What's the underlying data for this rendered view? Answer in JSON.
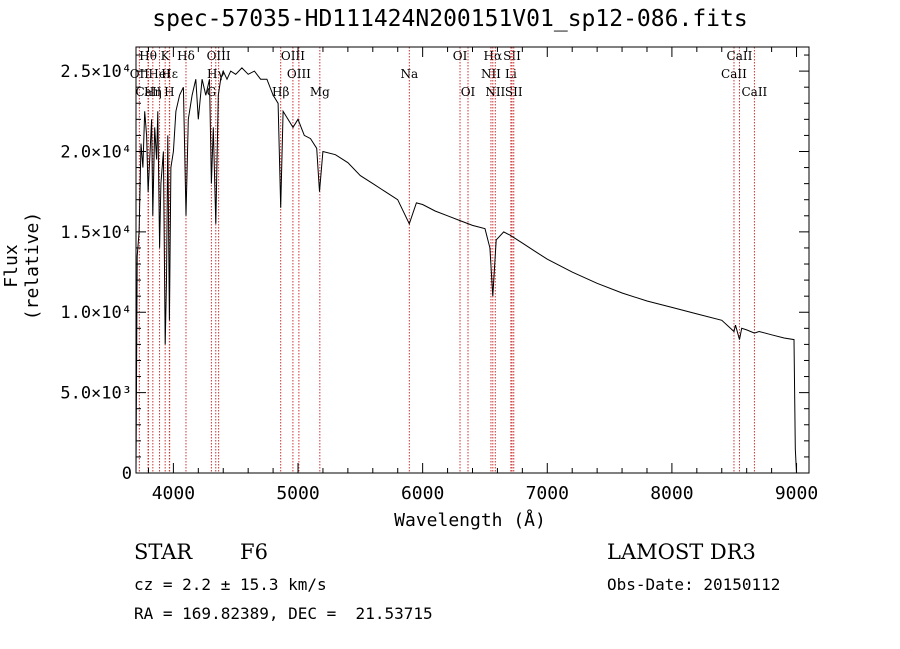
{
  "chart_data": {
    "type": "line",
    "title": "spec-57035-HD111424N200151V01_sp12-086.fits",
    "xlabel": "Wavelength (Å)",
    "ylabel": "Flux (relative)",
    "xlim": [
      3700,
      9100
    ],
    "ylim": [
      0,
      26500
    ],
    "x_ticks": [
      {
        "value": 4000,
        "label": "4000"
      },
      {
        "value": 5000,
        "label": "5000"
      },
      {
        "value": 6000,
        "label": "6000"
      },
      {
        "value": 7000,
        "label": "7000"
      },
      {
        "value": 8000,
        "label": "8000"
      },
      {
        "value": 9000,
        "label": "9000"
      }
    ],
    "y_ticks": [
      {
        "value": 0,
        "label": "0"
      },
      {
        "value": 5000,
        "label": "5.0×10³"
      },
      {
        "value": 10000,
        "label": "1.0×10⁴"
      },
      {
        "value": 15000,
        "label": "1.5×10⁴"
      },
      {
        "value": 20000,
        "label": "2.0×10⁴"
      },
      {
        "value": 25000,
        "label": "2.5×10⁴"
      }
    ],
    "series": [
      {
        "name": "flux",
        "x": [
          3700,
          3710,
          3725,
          3740,
          3755,
          3770,
          3785,
          3797,
          3810,
          3825,
          3835,
          3850,
          3865,
          3875,
          3889,
          3900,
          3920,
          3934,
          3945,
          3955,
          3968,
          3980,
          4000,
          4020,
          4050,
          4080,
          4101,
          4120,
          4150,
          4180,
          4200,
          4230,
          4260,
          4290,
          4305,
          4320,
          4340,
          4360,
          4380,
          4400,
          4430,
          4460,
          4500,
          4550,
          4600,
          4650,
          4700,
          4750,
          4800,
          4840,
          4861,
          4880,
          4920,
          4960,
          5000,
          5050,
          5100,
          5150,
          5172,
          5200,
          5300,
          5400,
          5500,
          5600,
          5700,
          5800,
          5893,
          5950,
          6000,
          6100,
          6200,
          6300,
          6400,
          6500,
          6540,
          6563,
          6590,
          6650,
          6700,
          6800,
          6900,
          7000,
          7200,
          7400,
          7600,
          7800,
          8000,
          8200,
          8400,
          8498,
          8510,
          8542,
          8560,
          8600,
          8662,
          8700,
          8800,
          8900,
          8980,
          8990,
          9000
        ],
        "y": [
          0,
          13500,
          15000,
          20500,
          19000,
          22500,
          21000,
          17500,
          19500,
          22000,
          16000,
          21500,
          19500,
          22500,
          14000,
          18000,
          20000,
          8000,
          12000,
          21000,
          9500,
          19000,
          20000,
          22500,
          23500,
          24000,
          16000,
          22000,
          23500,
          24500,
          22000,
          24500,
          23500,
          24500,
          18000,
          21500,
          15500,
          23500,
          24500,
          25000,
          24500,
          25000,
          24800,
          25200,
          24800,
          25000,
          24500,
          24500,
          23500,
          23000,
          16500,
          22500,
          22000,
          21500,
          22000,
          21000,
          20800,
          20200,
          17500,
          20000,
          19800,
          19300,
          18500,
          18000,
          17500,
          17000,
          15500,
          16800,
          16700,
          16300,
          16000,
          15700,
          15400,
          15200,
          14000,
          11000,
          14500,
          15000,
          14800,
          14300,
          13800,
          13300,
          12500,
          11800,
          11200,
          10700,
          10300,
          9900,
          9500,
          8800,
          9200,
          8300,
          9000,
          8900,
          8700,
          8800,
          8600,
          8400,
          8300,
          1500,
          0
        ]
      }
    ],
    "line_markers": [
      {
        "label": "Hθ",
        "x": 3797,
        "row": 1
      },
      {
        "label": "OII",
        "x": 3727,
        "row": 2
      },
      {
        "label": "CaII",
        "x": 3800,
        "row": 3
      },
      {
        "label": "K",
        "x": 3934,
        "row": 1
      },
      {
        "label": "HeI",
        "x": 3889,
        "row": 2
      },
      {
        "label": "Hη",
        "x": 3835,
        "row": 3
      },
      {
        "label": "Hδ",
        "x": 4101,
        "row": 1
      },
      {
        "label": "Hε",
        "x": 3970,
        "row": 2
      },
      {
        "label": "H",
        "x": 3968,
        "row": 3
      },
      {
        "label": "OIII",
        "x": 4363,
        "row": 1
      },
      {
        "label": "Hγ",
        "x": 4340,
        "row": 2
      },
      {
        "label": "G",
        "x": 4305,
        "row": 3
      },
      {
        "label": "OIII",
        "x": 4959,
        "row": 1
      },
      {
        "label": "OIII",
        "x": 5007,
        "row": 2
      },
      {
        "label": "Hβ",
        "x": 4861,
        "row": 3
      },
      {
        "label": "Mg",
        "x": 5175,
        "row": 3
      },
      {
        "label": "Na",
        "x": 5893,
        "row": 2
      },
      {
        "label": "OI",
        "x": 6300,
        "row": 1
      },
      {
        "label": "OI",
        "x": 6364,
        "row": 3
      },
      {
        "label": "Hα",
        "x": 6563,
        "row": 1
      },
      {
        "label": "NII",
        "x": 6548,
        "row": 2
      },
      {
        "label": "NII",
        "x": 6583,
        "row": 3
      },
      {
        "label": "SII",
        "x": 6717,
        "row": 1
      },
      {
        "label": "Li",
        "x": 6708,
        "row": 2
      },
      {
        "label": "SII",
        "x": 6731,
        "row": 3
      },
      {
        "label": "CaII",
        "x": 8542,
        "row": 1
      },
      {
        "label": "CaII",
        "x": 8498,
        "row": 2
      },
      {
        "label": "CaII",
        "x": 8662,
        "row": 3
      }
    ]
  },
  "info": {
    "object_type": "STAR",
    "subclass": "F6",
    "cz": "cz = 2.2 ± 15.3 km/s",
    "coords": "RA = 169.82389, DEC =  21.53715",
    "survey": "LAMOST DR3",
    "obs_date": "Obs-Date: 20150112"
  }
}
